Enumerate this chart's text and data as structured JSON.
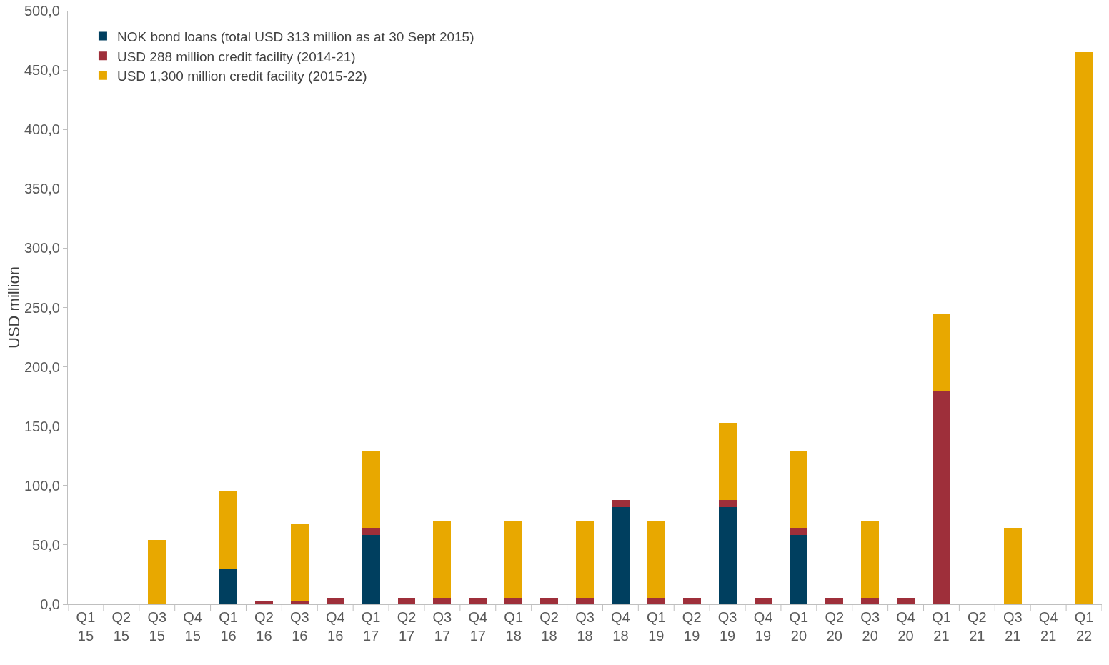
{
  "chart_data": {
    "type": "bar",
    "stacked": true,
    "ylabel": "USD million",
    "categories": [
      "Q1\n15",
      "Q2\n15",
      "Q3\n15",
      "Q4\n15",
      "Q1\n16",
      "Q2\n16",
      "Q3\n16",
      "Q4\n16",
      "Q1\n17",
      "Q2\n17",
      "Q3\n17",
      "Q4\n17",
      "Q1\n18",
      "Q2\n18",
      "Q3\n18",
      "Q4\n18",
      "Q1\n19",
      "Q2\n19",
      "Q3\n19",
      "Q4\n19",
      "Q1\n20",
      "Q2\n20",
      "Q3\n20",
      "Q4\n20",
      "Q1\n21",
      "Q2\n21",
      "Q3\n21",
      "Q4\n21",
      "Q1\n22"
    ],
    "series": [
      {
        "name": "NOK bond loans (total USD 313 million as at 30 Sept 2015)",
        "color": "#003f5f",
        "values": [
          0,
          0,
          0,
          0,
          30,
          0,
          0,
          0,
          58.5,
          0,
          0,
          0,
          0,
          0,
          0,
          82,
          0,
          0,
          82,
          0,
          58.5,
          0,
          0,
          0,
          0,
          0,
          0,
          0,
          0
        ]
      },
      {
        "name": "USD 288 million credit facility (2014-21)",
        "color": "#9e2f3a",
        "values": [
          0,
          0,
          0,
          0,
          0,
          2.5,
          2.5,
          5.5,
          6,
          5.5,
          5.5,
          5.5,
          5.5,
          5.5,
          5.5,
          6,
          5.5,
          5.5,
          6,
          5.5,
          6,
          5.5,
          5.5,
          5.5,
          180,
          0,
          0,
          0,
          0
        ]
      },
      {
        "name": "USD 1,300 million credit facility (2015-22)",
        "color": "#e8a800",
        "values": [
          0,
          0,
          54,
          0,
          65,
          0,
          65,
          0,
          65,
          0,
          65,
          0,
          65,
          0,
          65,
          0,
          65,
          0,
          65,
          0,
          65,
          0,
          65,
          0,
          64,
          0,
          64.5,
          0,
          465
        ]
      }
    ],
    "ylim": [
      0,
      500
    ],
    "yticks": [
      {
        "value": 0,
        "label": "0,0"
      },
      {
        "value": 50,
        "label": "50,0"
      },
      {
        "value": 100,
        "label": "100,0"
      },
      {
        "value": 150,
        "label": "150,0"
      },
      {
        "value": 200,
        "label": "200,0"
      },
      {
        "value": 250,
        "label": "250,0"
      },
      {
        "value": 300,
        "label": "300,0"
      },
      {
        "value": 350,
        "label": "350,0"
      },
      {
        "value": 400,
        "label": "400,0"
      },
      {
        "value": 450,
        "label": "450,0"
      },
      {
        "value": 500,
        "label": "500,0"
      }
    ],
    "grid": false,
    "legend": "top left"
  }
}
